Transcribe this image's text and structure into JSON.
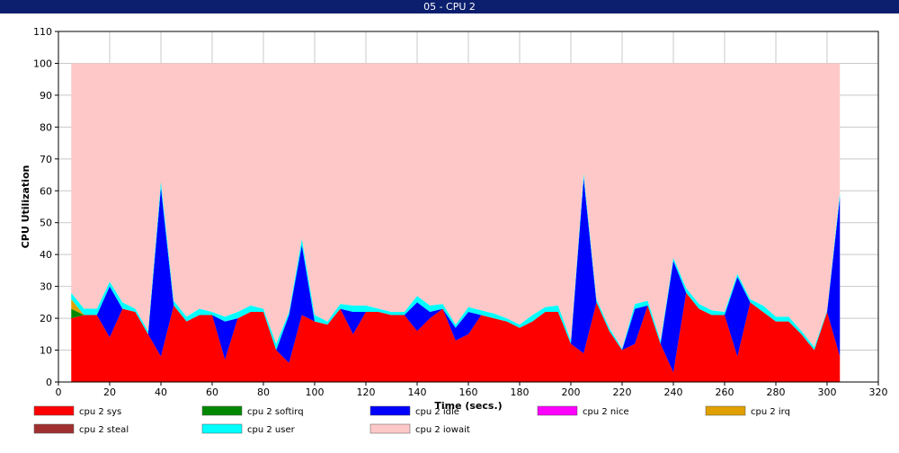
{
  "window": {
    "title": "05 - CPU 2"
  },
  "chart_data": {
    "type": "area",
    "stacked": true,
    "title": "05 - CPU 2",
    "xlabel": "Time (secs.)",
    "ylabel": "CPU Utilization",
    "xlim": [
      0,
      320
    ],
    "ylim": [
      0,
      110
    ],
    "xticks": [
      0,
      20,
      40,
      60,
      80,
      100,
      120,
      140,
      160,
      180,
      200,
      220,
      240,
      260,
      280,
      300,
      320
    ],
    "yticks": [
      0,
      10,
      20,
      30,
      40,
      50,
      60,
      70,
      80,
      90,
      100,
      110
    ],
    "grid": true,
    "legend_position": "bottom",
    "x": [
      5,
      10,
      15,
      20,
      25,
      30,
      35,
      40,
      45,
      50,
      55,
      60,
      65,
      70,
      75,
      80,
      85,
      90,
      95,
      100,
      105,
      110,
      115,
      120,
      125,
      130,
      135,
      140,
      145,
      150,
      155,
      160,
      165,
      170,
      175,
      180,
      185,
      190,
      195,
      200,
      205,
      210,
      215,
      220,
      225,
      230,
      235,
      240,
      245,
      250,
      255,
      260,
      265,
      270,
      275,
      280,
      285,
      290,
      295,
      300,
      305
    ],
    "series": [
      {
        "name": "cpu 2 sys",
        "color": "#ff0000",
        "values": [
          20,
          21,
          21,
          14,
          23,
          22,
          15,
          8,
          24,
          19,
          21,
          21,
          7,
          20,
          22,
          22,
          10,
          6,
          21,
          19,
          18,
          23,
          15,
          22,
          22,
          21,
          21,
          16,
          20,
          23,
          13,
          15,
          21,
          20,
          19,
          17,
          19,
          22,
          22,
          12,
          9,
          25,
          16,
          10,
          12,
          24,
          12,
          3,
          28,
          23,
          21,
          21,
          8,
          25,
          22,
          19,
          19,
          15,
          10,
          22,
          8
        ]
      },
      {
        "name": "cpu 2 softirq",
        "color": "#008800",
        "values": [
          3,
          0,
          0,
          0,
          0,
          0,
          0,
          0,
          0,
          0,
          0,
          0,
          0,
          0,
          0,
          0,
          0,
          0,
          0,
          0,
          0,
          0,
          0,
          0,
          0,
          0,
          0,
          0,
          0,
          0,
          0,
          0,
          0,
          0,
          0,
          0,
          0,
          0,
          0,
          0,
          0,
          0,
          0,
          0,
          0,
          0,
          0,
          0,
          0,
          0,
          0,
          0,
          0,
          0,
          0,
          0,
          0,
          0,
          0,
          0,
          0
        ]
      },
      {
        "name": "cpu 2 idle",
        "color": "#0000ff",
        "values": [
          0,
          0,
          0,
          16,
          0,
          0,
          0,
          53,
          0,
          0,
          0,
          0,
          12,
          0,
          0,
          0,
          0,
          15,
          22,
          0,
          0,
          0,
          7,
          0,
          0,
          0,
          0,
          9,
          2,
          0,
          4,
          7,
          0,
          0,
          0,
          0,
          0,
          0,
          0,
          0,
          55,
          0,
          0,
          0,
          11,
          0,
          0,
          35,
          0,
          0,
          0,
          0,
          25,
          0,
          0,
          0,
          0,
          0,
          0,
          0,
          50
        ]
      },
      {
        "name": "cpu 2 nice",
        "color": "#ff00ff",
        "values": [
          0,
          0,
          0,
          0,
          0,
          0,
          0,
          0,
          0,
          0,
          0,
          0,
          0,
          0,
          0,
          0,
          0,
          0,
          0,
          0,
          0,
          0,
          0,
          0,
          0,
          0,
          0,
          0,
          0,
          0,
          0,
          0,
          0,
          0,
          0,
          0,
          0,
          0,
          0,
          0,
          0,
          0,
          0,
          0,
          0,
          0,
          0,
          0,
          0,
          0,
          0,
          0,
          0,
          0,
          0,
          0,
          0,
          0,
          0,
          0,
          0
        ]
      },
      {
        "name": "cpu 2 irq",
        "color": "#e0a000",
        "values": [
          3,
          0,
          0,
          0,
          0,
          0,
          0,
          0,
          0,
          0,
          0,
          0,
          0,
          0,
          0,
          0,
          0,
          0,
          0,
          0,
          0,
          0,
          0,
          0,
          0,
          0,
          0,
          0,
          0,
          0,
          0,
          0,
          0,
          0,
          0,
          0,
          0,
          0,
          0,
          0,
          0,
          0,
          0,
          0,
          0,
          0,
          0,
          0,
          0,
          0,
          0,
          0,
          0,
          0,
          0,
          0,
          0,
          0,
          0,
          0,
          0
        ]
      },
      {
        "name": "cpu 2 steal",
        "color": "#a03030",
        "values": [
          0,
          0,
          0,
          0,
          0,
          0,
          0,
          0,
          0,
          0,
          0,
          0,
          0,
          0,
          0,
          0,
          0,
          0,
          0,
          0,
          0,
          0,
          0,
          0,
          0,
          0,
          0,
          0,
          0,
          0,
          0,
          0,
          0,
          0,
          0,
          0,
          0,
          0,
          0,
          0,
          0,
          0,
          0,
          0,
          0,
          0,
          0,
          0,
          0,
          0,
          0,
          0,
          0,
          0,
          0,
          0,
          0,
          0,
          0,
          0,
          0
        ]
      },
      {
        "name": "cpu 2 user",
        "color": "#00ffff",
        "values": [
          2,
          2,
          2,
          1.5,
          2,
          1,
          1,
          2,
          1.5,
          1.5,
          2,
          1,
          1.5,
          2,
          2,
          1,
          2,
          1,
          2,
          2,
          1,
          1.5,
          2,
          2,
          1,
          1,
          1,
          2,
          2,
          1.5,
          1,
          1.5,
          1.5,
          1.5,
          1,
          1,
          2,
          1.5,
          2,
          1,
          1.5,
          1,
          1,
          0.5,
          1.5,
          1.5,
          1,
          1,
          1.5,
          1.5,
          1.5,
          1,
          1,
          1,
          2,
          1.5,
          1.5,
          1,
          1,
          0.5,
          1.5
        ]
      },
      {
        "name": "cpu 2 iowait",
        "color": "#ffc8c8",
        "values": [
          72,
          77,
          77,
          68.5,
          75,
          77,
          84,
          37,
          74.5,
          79.5,
          77,
          78,
          79.5,
          78,
          76,
          77,
          88,
          78,
          55,
          79,
          81,
          75.5,
          76,
          76,
          77,
          78,
          78,
          73,
          76,
          75.5,
          82,
          76.5,
          77.5,
          78.5,
          80,
          82,
          79,
          76.5,
          76,
          87,
          34.5,
          74,
          83,
          89.5,
          75.5,
          74.5,
          87,
          61,
          70.5,
          75.5,
          77.5,
          78,
          66,
          74,
          76,
          79.5,
          79.5,
          84,
          89,
          77.5,
          40.5
        ]
      }
    ]
  }
}
